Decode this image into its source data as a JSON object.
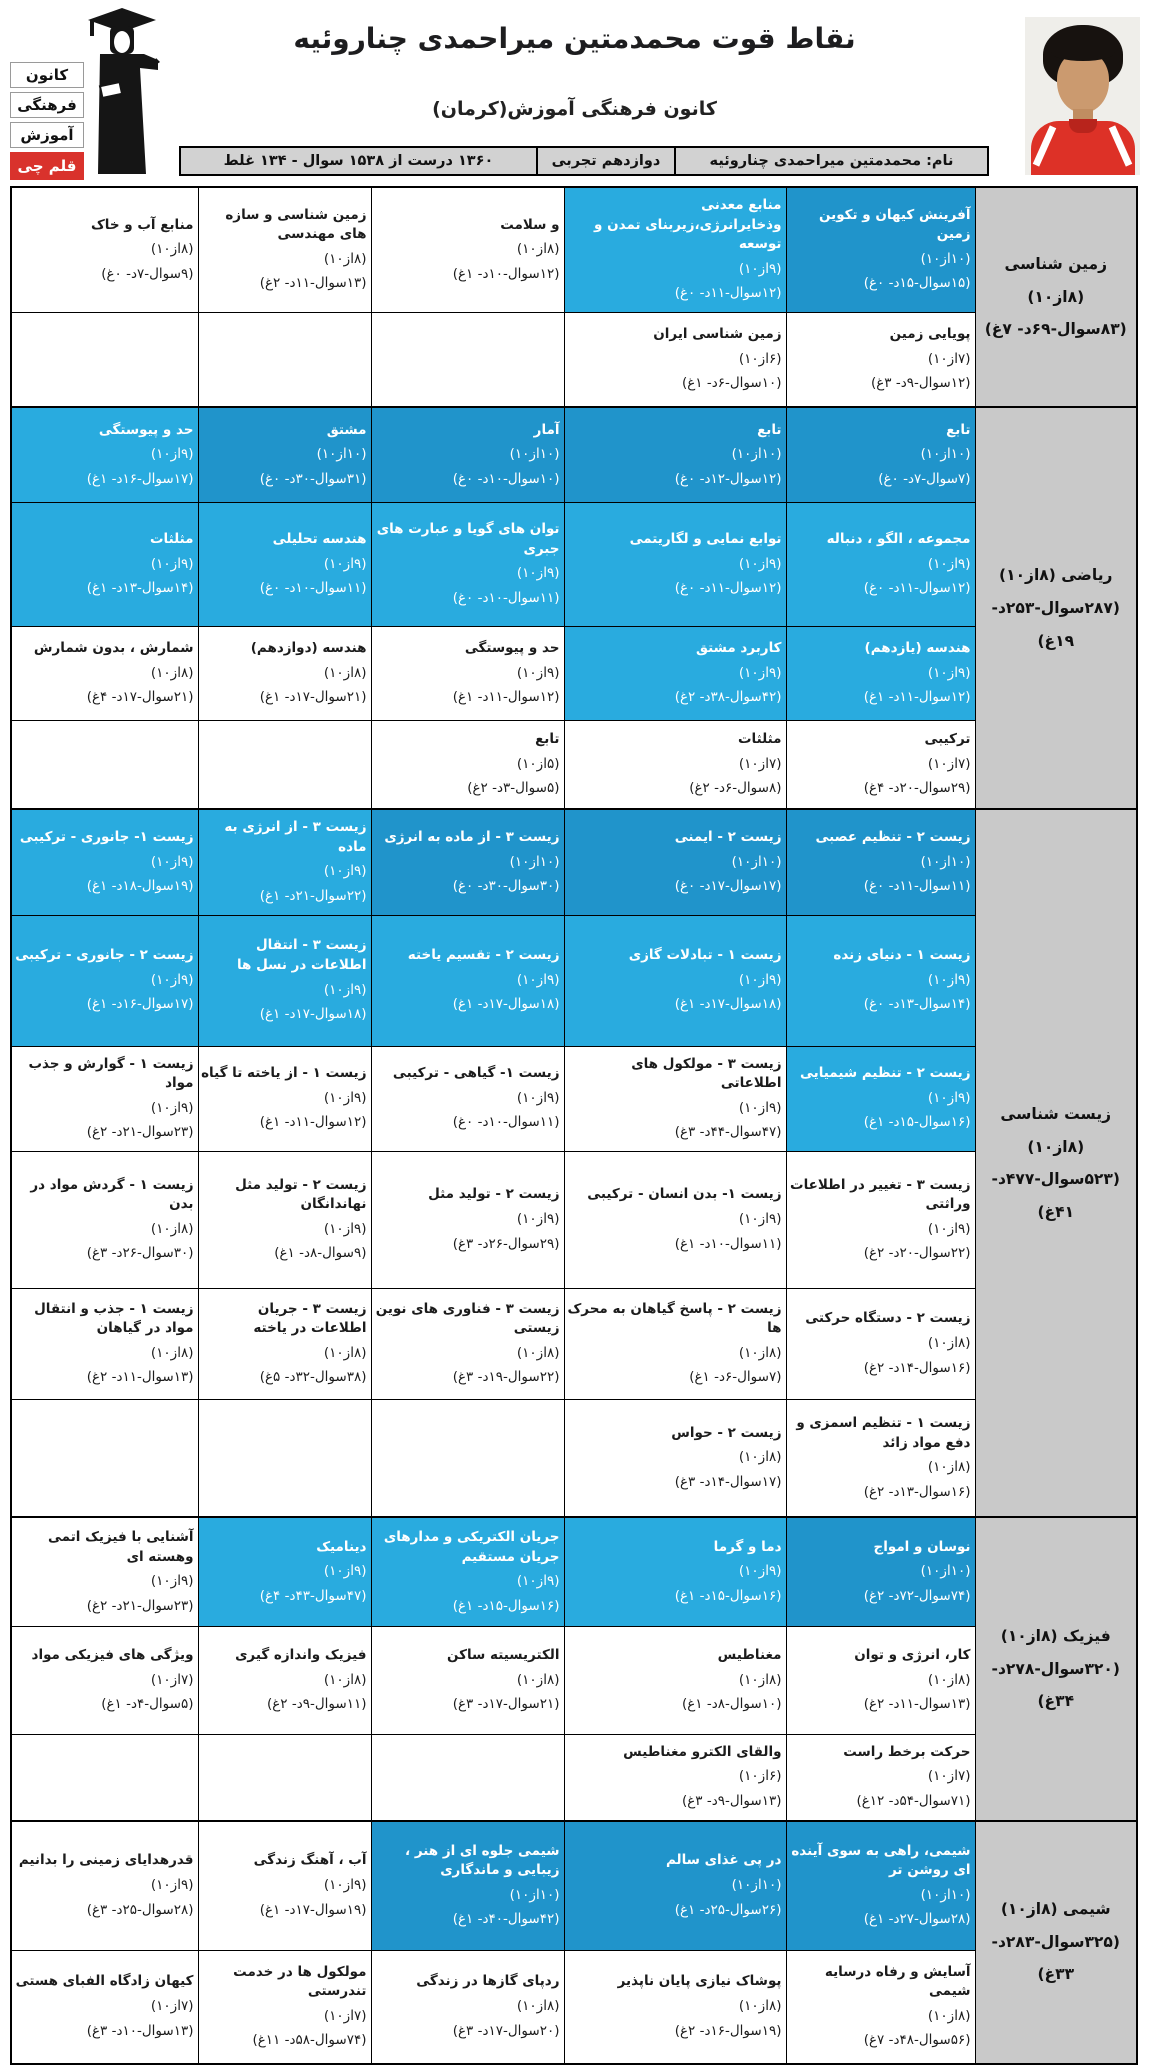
{
  "page": {
    "title": "نقاط قوت محمدمتین میراحمدی چناروئیه",
    "subtitle": "کانون فرهنگی آموزش(کرمان)"
  },
  "logo": {
    "words": [
      "کانون",
      "فرهنگی",
      "آموزش"
    ],
    "badge": "قلم چی"
  },
  "info_bar": {
    "name": "نام: محمدمتین میراحمدی چناروئیه",
    "grade": "دوازدهم تجربی",
    "summary": "۱۳۶۰ درست از ۱۵۳۸ سوال - ۱۳۴ غلط"
  },
  "colors": {
    "highlight_strong": "#2094cb",
    "highlight_light": "#29abdf",
    "subject_bg": "#c9c9c9",
    "infobar_bg": "#d2d2d2",
    "badge_red": "#d9322c"
  },
  "sections": [
    {
      "name": "زمین شناسی (۸از۱۰)",
      "stats": "(۸۳سوال-۶۹د- ۷غ)",
      "rows": [
        {
          "cells": [
            {
              "title": "آفرینش کیهان و تکوین زمین",
              "score": "(۱۰از۱۰)",
              "stats": "(۱۵سوال-۱۵د- ۰غ)",
              "hl": "strong"
            },
            {
              "title": "منابع معدنی وذخایرانرژی،زیربنای تمدن و توسعه",
              "score": "(۹از۱۰)",
              "stats": "(۱۲سوال-۱۱د- ۰غ)",
              "hl": "light"
            },
            {
              "title": "و سلامت",
              "score": "(۸از۱۰)",
              "stats": "(۱۲سوال-۱۰د- ۱غ)",
              "hl": null
            },
            {
              "title": "زمین شناسی و سازه های مهندسی",
              "score": "(۸از۱۰)",
              "stats": "(۱۳سوال-۱۱د- ۲غ)",
              "hl": null
            },
            {
              "title": "منابع آب و خاک",
              "score": "(۸از۱۰)",
              "stats": "(۹سوال-۷د- ۰غ)",
              "hl": null
            }
          ]
        },
        {
          "cells": [
            {
              "title": "پویایی زمین",
              "score": "(۷از۱۰)",
              "stats": "(۱۲سوال-۹د- ۳غ)",
              "hl": null
            },
            {
              "title": "زمین شناسی ایران",
              "score": "(۶از۱۰)",
              "stats": "(۱۰سوال-۶د- ۱غ)",
              "hl": null
            },
            null,
            null,
            null
          ]
        }
      ]
    },
    {
      "name": "ریاضی (۸از۱۰)",
      "stats": "(۲۸۷سوال-۲۵۳د- ۱۹غ)",
      "rows": [
        {
          "cells": [
            {
              "title": "تابع",
              "score": "(۱۰از۱۰)",
              "stats": "(۷سوال-۷د- ۰غ)",
              "hl": "strong"
            },
            {
              "title": "تابع",
              "score": "(۱۰از۱۰)",
              "stats": "(۱۲سوال-۱۲د- ۰غ)",
              "hl": "strong"
            },
            {
              "title": "آمار",
              "score": "(۱۰از۱۰)",
              "stats": "(۱۰سوال-۱۰د- ۰غ)",
              "hl": "strong"
            },
            {
              "title": "مشتق",
              "score": "(۱۰از۱۰)",
              "stats": "(۳۱سوال-۳۰د- ۰غ)",
              "hl": "strong"
            },
            {
              "title": "حد و پیوستگی",
              "score": "(۹از۱۰)",
              "stats": "(۱۷سوال-۱۶د- ۱غ)",
              "hl": "light"
            }
          ]
        },
        {
          "cells": [
            {
              "title": "مجموعه ، الگو ، دنباله",
              "score": "(۹از۱۰)",
              "stats": "(۱۲سوال-۱۱د- ۰غ)",
              "hl": "light"
            },
            {
              "title": "توابع نمایی و لگاریتمی",
              "score": "(۹از۱۰)",
              "stats": "(۱۲سوال-۱۱د- ۰غ)",
              "hl": "light"
            },
            {
              "title": "توان های گویا و عبارت های جبری",
              "score": "(۹از۱۰)",
              "stats": "(۱۱سوال-۱۰د- ۰غ)",
              "hl": "light"
            },
            {
              "title": "هندسه تحلیلی",
              "score": "(۹از۱۰)",
              "stats": "(۱۱سوال-۱۰د- ۰غ)",
              "hl": "light"
            },
            {
              "title": "مثلثات",
              "score": "(۹از۱۰)",
              "stats": "(۱۴سوال-۱۳د- ۱غ)",
              "hl": "light"
            }
          ]
        },
        {
          "cells": [
            {
              "title": "هندسه (یازدهم)",
              "score": "(۹از۱۰)",
              "stats": "(۱۲سوال-۱۱د- ۱غ)",
              "hl": "light"
            },
            {
              "title": "کاربرد مشتق",
              "score": "(۹از۱۰)",
              "stats": "(۴۲سوال-۳۸د- ۲غ)",
              "hl": "light"
            },
            {
              "title": "حد و پیوستگی",
              "score": "(۹از۱۰)",
              "stats": "(۱۲سوال-۱۱د- ۱غ)",
              "hl": null
            },
            {
              "title": "هندسه (دوازدهم)",
              "score": "(۸از۱۰)",
              "stats": "(۲۱سوال-۱۷د- ۱غ)",
              "hl": null
            },
            {
              "title": "شمارش ، بدون شمارش",
              "score": "(۸از۱۰)",
              "stats": "(۲۱سوال-۱۷د- ۴غ)",
              "hl": null
            }
          ]
        },
        {
          "cells": [
            {
              "title": "ترکیبی",
              "score": "(۷از۱۰)",
              "stats": "(۲۹سوال-۲۰د- ۴غ)",
              "hl": null
            },
            {
              "title": "مثلثات",
              "score": "(۷از۱۰)",
              "stats": "(۸سوال-۶د- ۲غ)",
              "hl": null
            },
            {
              "title": "تابع",
              "score": "(۵از۱۰)",
              "stats": "(۵سوال-۳د- ۲غ)",
              "hl": null
            },
            null,
            null
          ]
        }
      ]
    },
    {
      "name": "زیست شناسی (۸از۱۰)",
      "stats": "(۵۲۳سوال-۴۷۷د- ۴۱غ)",
      "rows": [
        {
          "cells": [
            {
              "title": "زیست ۲ - تنظیم عصبی",
              "score": "(۱۰از۱۰)",
              "stats": "(۱۱سوال-۱۱د- ۰غ)",
              "hl": "strong"
            },
            {
              "title": "زیست ۲ - ایمنی",
              "score": "(۱۰از۱۰)",
              "stats": "(۱۷سوال-۱۷د- ۰غ)",
              "hl": "strong"
            },
            {
              "title": "زیست ۳ - از ماده به انرژی",
              "score": "(۱۰از۱۰)",
              "stats": "(۳۰سوال-۳۰د- ۰غ)",
              "hl": "strong"
            },
            {
              "title": "زیست ۳ - از انرژی به ماده",
              "score": "(۹از۱۰)",
              "stats": "(۲۲سوال-۲۱د- ۱غ)",
              "hl": "light"
            },
            {
              "title": "زیست ۱- جانوری - ترکیبی",
              "score": "(۹از۱۰)",
              "stats": "(۱۹سوال-۱۸د- ۱غ)",
              "hl": "light"
            }
          ]
        },
        {
          "cells": [
            {
              "title": "زیست ۱ - دنیای زنده",
              "score": "(۹از۱۰)",
              "stats": "(۱۴سوال-۱۳د- ۰غ)",
              "hl": "light"
            },
            {
              "title": "زیست ۱ - تبادلات گازی",
              "score": "(۹از۱۰)",
              "stats": "(۱۸سوال-۱۷د- ۱غ)",
              "hl": "light"
            },
            {
              "title": "زیست ۲ - تقسیم یاخته",
              "score": "(۹از۱۰)",
              "stats": "(۱۸سوال-۱۷د- ۱غ)",
              "hl": "light"
            },
            {
              "title": "زیست ۳ - انتقال اطلاعات در نسل ها",
              "score": "(۹از۱۰)",
              "stats": "(۱۸سوال-۱۷د- ۱غ)",
              "hl": "light"
            },
            {
              "title": "زیست ۲ - جانوری - ترکیبی",
              "score": "(۹از۱۰)",
              "stats": "(۱۷سوال-۱۶د- ۱غ)",
              "hl": "light"
            }
          ]
        },
        {
          "cells": [
            {
              "title": "زیست ۲ - تنظیم شیمیایی",
              "score": "(۹از۱۰)",
              "stats": "(۱۶سوال-۱۵د- ۱غ)",
              "hl": "light"
            },
            {
              "title": "زیست ۳ - مولکول های اطلاعاتی",
              "score": "(۹از۱۰)",
              "stats": "(۴۷سوال-۴۴د- ۳غ)",
              "hl": null
            },
            {
              "title": "زیست ۱- گیاهی - ترکیبی",
              "score": "(۹از۱۰)",
              "stats": "(۱۱سوال-۱۰د- ۰غ)",
              "hl": null
            },
            {
              "title": "زیست ۱ - از یاخته تا گیاه",
              "score": "(۹از۱۰)",
              "stats": "(۱۲سوال-۱۱د- ۱غ)",
              "hl": null
            },
            {
              "title": "زیست ۱ - گوارش و جذب مواد",
              "score": "(۹از۱۰)",
              "stats": "(۲۳سوال-۲۱د- ۲غ)",
              "hl": null
            }
          ]
        },
        {
          "cells": [
            {
              "title": "زیست ۳ - تغییر در اطلاعات وراثتی",
              "score": "(۹از۱۰)",
              "stats": "(۲۲سوال-۲۰د- ۲غ)",
              "hl": null
            },
            {
              "title": "زیست ۱- بدن انسان - ترکیبی",
              "score": "(۹از۱۰)",
              "stats": "(۱۱سوال-۱۰د- ۱غ)",
              "hl": null
            },
            {
              "title": "زیست ۲ - تولید مثل",
              "score": "(۹از۱۰)",
              "stats": "(۲۹سوال-۲۶د- ۳غ)",
              "hl": null
            },
            {
              "title": "زیست ۲ - تولید مثل نهاندانگان",
              "score": "(۹از۱۰)",
              "stats": "(۹سوال-۸د- ۱غ)",
              "hl": null
            },
            {
              "title": "زیست ۱ - گردش مواد در بدن",
              "score": "(۸از۱۰)",
              "stats": "(۳۰سوال-۲۶د- ۳غ)",
              "hl": null
            }
          ]
        },
        {
          "cells": [
            {
              "title": "زیست ۲ - دستگاه حرکتی",
              "score": "(۸از۱۰)",
              "stats": "(۱۶سوال-۱۴د- ۲غ)",
              "hl": null
            },
            {
              "title": "زیست ۲ - پاسخ گیاهان به محرک ها",
              "score": "(۸از۱۰)",
              "stats": "(۷سوال-۶د- ۱غ)",
              "hl": null
            },
            {
              "title": "زیست ۳ - فناوری های نوین زیستی",
              "score": "(۸از۱۰)",
              "stats": "(۲۲سوال-۱۹د- ۳غ)",
              "hl": null
            },
            {
              "title": "زیست ۳ - جریان اطلاعات در یاخته",
              "score": "(۸از۱۰)",
              "stats": "(۳۸سوال-۳۲د- ۵غ)",
              "hl": null
            },
            {
              "title": "زیست ۱ - جذب و انتقال مواد در گیاهان",
              "score": "(۸از۱۰)",
              "stats": "(۱۳سوال-۱۱د- ۲غ)",
              "hl": null
            }
          ]
        },
        {
          "cells": [
            {
              "title": "زیست ۱ - تنظیم اسمزی و دفع مواد زائد",
              "score": "(۸از۱۰)",
              "stats": "(۱۶سوال-۱۳د- ۲غ)",
              "hl": null
            },
            {
              "title": "زیست ۲ - حواس",
              "score": "(۸از۱۰)",
              "stats": "(۱۷سوال-۱۴د- ۳غ)",
              "hl": null
            },
            null,
            null,
            null
          ]
        }
      ]
    },
    {
      "name": "فیزیک (۸از۱۰)",
      "stats": "(۳۲۰سوال-۲۷۸د- ۳۴غ)",
      "rows": [
        {
          "cells": [
            {
              "title": "نوسان و امواج",
              "score": "(۱۰از۱۰)",
              "stats": "(۷۴سوال-۷۲د- ۲غ)",
              "hl": "strong"
            },
            {
              "title": "دما و گرما",
              "score": "(۹از۱۰)",
              "stats": "(۱۶سوال-۱۵د- ۱غ)",
              "hl": "light"
            },
            {
              "title": "جریان الکتریکی و مدارهای جریان مستقیم",
              "score": "(۹از۱۰)",
              "stats": "(۱۶سوال-۱۵د- ۱غ)",
              "hl": "light"
            },
            {
              "title": "دینامیک",
              "score": "(۹از۱۰)",
              "stats": "(۴۷سوال-۴۳د- ۴غ)",
              "hl": "light"
            },
            {
              "title": "آشنایی با فیزیک اتمی وهسته ای",
              "score": "(۹از۱۰)",
              "stats": "(۲۳سوال-۲۱د- ۲غ)",
              "hl": null
            }
          ]
        },
        {
          "cells": [
            {
              "title": "کار، انرژی و توان",
              "score": "(۸از۱۰)",
              "stats": "(۱۳سوال-۱۱د- ۲غ)",
              "hl": null
            },
            {
              "title": "مغناطیس",
              "score": "(۸از۱۰)",
              "stats": "(۱۰سوال-۸د- ۱غ)",
              "hl": null
            },
            {
              "title": "الکتریسیته ساکن",
              "score": "(۸از۱۰)",
              "stats": "(۲۱سوال-۱۷د- ۳غ)",
              "hl": null
            },
            {
              "title": "فیزیک واندازه گیری",
              "score": "(۸از۱۰)",
              "stats": "(۱۱سوال-۹د- ۲غ)",
              "hl": null
            },
            {
              "title": "ویژگی های فیزیکی مواد",
              "score": "(۷از۱۰)",
              "stats": "(۵سوال-۴د- ۱غ)",
              "hl": null
            }
          ]
        },
        {
          "cells": [
            {
              "title": "حرکت برخط راست",
              "score": "(۷از۱۰)",
              "stats": "(۷۱سوال-۵۴د- ۱۲غ)",
              "hl": null
            },
            {
              "title": "والقای الکترو مغناطیس",
              "score": "(۶از۱۰)",
              "stats": "(۱۳سوال-۹د- ۳غ)",
              "hl": null
            },
            null,
            null,
            null
          ]
        }
      ]
    },
    {
      "name": "شیمی (۸از۱۰)",
      "stats": "(۳۲۵سوال-۲۸۳د- ۳۳غ)",
      "rows": [
        {
          "cells": [
            {
              "title": "شیمی، راهی به سوی آینده ای روشن تر",
              "score": "(۱۰از۱۰)",
              "stats": "(۲۸سوال-۲۷د- ۱غ)",
              "hl": "strong"
            },
            {
              "title": "در پی غذای سالم",
              "score": "(۱۰از۱۰)",
              "stats": "(۲۶سوال-۲۵د- ۱غ)",
              "hl": "strong"
            },
            {
              "title": "شیمی جلوه ای از هنر ، زیبایی و ماندگاری",
              "score": "(۱۰از۱۰)",
              "stats": "(۴۲سوال-۴۰د- ۱غ)",
              "hl": "strong"
            },
            {
              "title": "آب ، آهنگ زندگی",
              "score": "(۹از۱۰)",
              "stats": "(۱۹سوال-۱۷د- ۱غ)",
              "hl": null
            },
            {
              "title": "قدرهدایای زمینی را بدانیم",
              "score": "(۹از۱۰)",
              "stats": "(۲۸سوال-۲۵د- ۳غ)",
              "hl": null
            }
          ]
        },
        {
          "cells": [
            {
              "title": "آسایش و رفاه درسایه شیمی",
              "score": "(۸از۱۰)",
              "stats": "(۵۶سوال-۴۸د- ۷غ)",
              "hl": null
            },
            {
              "title": "پوشاک نیازی پایان ناپذیر",
              "score": "(۸از۱۰)",
              "stats": "(۱۹سوال-۱۶د- ۲غ)",
              "hl": null
            },
            {
              "title": "ردپای گازها در زندگی",
              "score": "(۸از۱۰)",
              "stats": "(۲۰سوال-۱۷د- ۳غ)",
              "hl": null
            },
            {
              "title": "مولکول ها در خدمت تندرستی",
              "score": "(۷از۱۰)",
              "stats": "(۷۴سوال-۵۸د- ۱۱غ)",
              "hl": null
            },
            {
              "title": "کیهان زادگاه الفبای هستی",
              "score": "(۷از۱۰)",
              "stats": "(۱۳سوال-۱۰د- ۳غ)",
              "hl": null
            }
          ]
        }
      ]
    }
  ]
}
